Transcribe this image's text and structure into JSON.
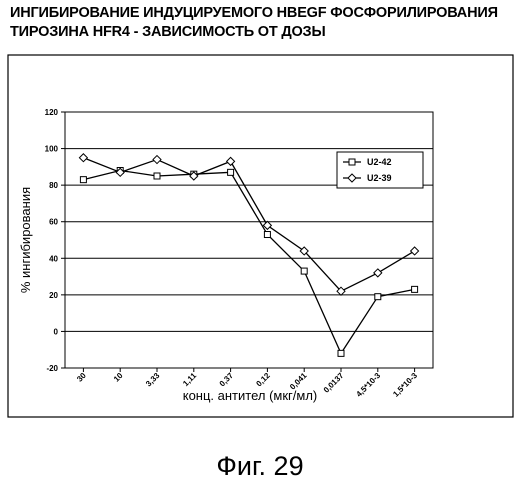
{
  "header": {
    "title_line1": "ИНГИБИРОВАНИЕ ИНДУЦИРУЕМОГО HBEGF ФОСФОРИЛИРОВАНИЯ",
    "title_line2": "ТИРОЗИНА HFR4 - ЗАВИСИМОСТЬ ОТ ДОЗЫ"
  },
  "caption": "Фиг. 29",
  "chart_data": {
    "type": "line",
    "title": "ИНГИБИРОВАНИЕ ИНДУЦИРУЕМОГО HBEGF ФОСФОРИЛИРОВАНИЯ ТИРОЗИНА HFR4 - ЗАВИСИМОСТЬ ОТ ДОЗЫ",
    "xlabel": "конц. антител (мкг/мл)",
    "ylabel": "% ингибирования",
    "categories": [
      "30",
      "10",
      "3,33",
      "1,11",
      "0,37",
      "0,12",
      "0,041",
      "0,0137",
      "4,5*10-3",
      "1,5*10-3"
    ],
    "ylim": [
      -20,
      120
    ],
    "yticks": [
      "-20",
      "0",
      "20",
      "40",
      "60",
      "80",
      "100",
      "120"
    ],
    "ytick_values": [
      -20,
      0,
      20,
      40,
      60,
      80,
      100,
      120
    ],
    "grid": true,
    "legend_position": "upper-right",
    "series": [
      {
        "name": "U2-42",
        "marker": "square",
        "values": [
          83,
          88,
          85,
          86,
          87,
          53,
          33,
          -12,
          19,
          23
        ]
      },
      {
        "name": "U2-39",
        "marker": "diamond",
        "values": [
          95,
          87,
          94,
          85,
          93,
          58,
          44,
          22,
          32,
          44
        ]
      }
    ]
  }
}
